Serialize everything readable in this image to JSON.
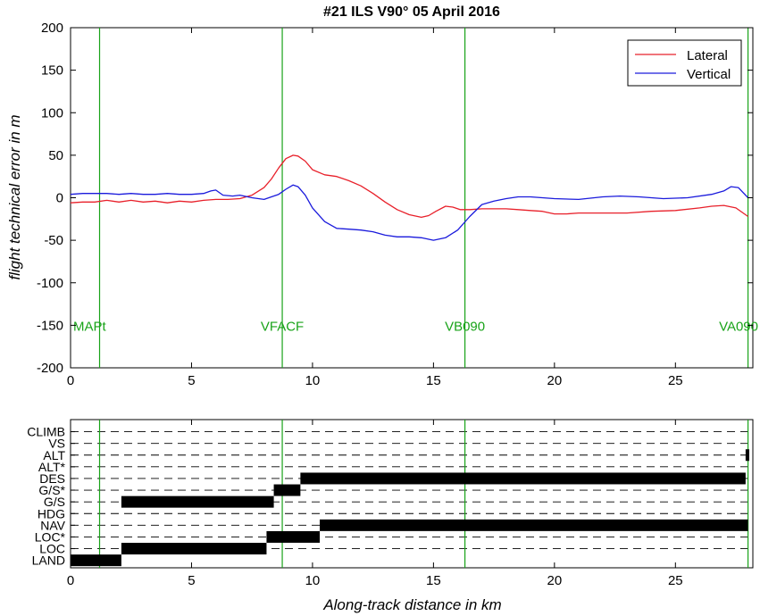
{
  "figure": {
    "title": "#21 ILS V90°  05 April 2016"
  },
  "colors": {
    "lateral": "#e8202a",
    "vertical": "#1a1adc",
    "waypoint": "#19a319",
    "axis": "#000000",
    "mode_fill": "#000000"
  },
  "chart_data": [
    {
      "type": "line",
      "title": "#21 ILS V90°  05 April 2016",
      "xlabel": "",
      "ylabel": "flight technical error in m",
      "xlim": [
        0,
        28.2
      ],
      "ylim": [
        -200,
        200
      ],
      "xticks": [
        0,
        5,
        10,
        15,
        20,
        25
      ],
      "yticks": [
        -200,
        -150,
        -100,
        -50,
        0,
        50,
        100,
        150,
        200
      ],
      "grid": false,
      "legend_position": "top-right",
      "series": [
        {
          "name": "Lateral",
          "color": "#e8202a",
          "x": [
            0,
            0.5,
            1,
            1.5,
            2,
            2.5,
            3,
            3.5,
            4,
            4.5,
            5,
            5.5,
            6,
            6.5,
            7,
            7.5,
            8,
            8.3,
            8.6,
            8.9,
            9.2,
            9.4,
            9.7,
            10.0,
            10.5,
            11,
            11.5,
            12,
            12.5,
            13,
            13.5,
            14,
            14.5,
            14.8,
            15.1,
            15.5,
            15.8,
            16.1,
            16.5,
            17,
            17.5,
            18,
            18.5,
            19,
            19.5,
            20,
            20.5,
            21,
            22,
            23,
            24,
            25,
            26,
            26.5,
            27,
            27.5,
            28.0
          ],
          "y": [
            -6,
            -5,
            -5,
            -3,
            -5,
            -3,
            -5,
            -4,
            -6,
            -4,
            -5,
            -3,
            -2,
            -2,
            -1,
            3,
            12,
            22,
            35,
            46,
            50,
            49,
            43,
            33,
            27,
            25,
            20,
            14,
            5,
            -5,
            -14,
            -20,
            -23,
            -21,
            -16,
            -10,
            -11,
            -14,
            -14,
            -13,
            -13,
            -13,
            -14,
            -15,
            -16,
            -19,
            -19,
            -18,
            -18,
            -18,
            -16,
            -15,
            -12,
            -10,
            -9,
            -12,
            -22
          ]
        },
        {
          "name": "Vertical",
          "color": "#1a1adc",
          "x": [
            0,
            0.5,
            1,
            1.5,
            2,
            2.5,
            3,
            3.5,
            4,
            4.5,
            5,
            5.5,
            5.8,
            6.0,
            6.3,
            6.7,
            7,
            7.5,
            8,
            8.3,
            8.6,
            8.9,
            9.2,
            9.4,
            9.7,
            10.0,
            10.5,
            11,
            11.5,
            12,
            12.5,
            13,
            13.5,
            14,
            14.5,
            15,
            15.5,
            16,
            16.5,
            17,
            17.5,
            18,
            18.5,
            19,
            19.5,
            20,
            21,
            22,
            22.7,
            23.5,
            24.5,
            25.5,
            26.5,
            27,
            27.3,
            27.6,
            28.0
          ],
          "y": [
            4,
            5,
            5,
            5,
            4,
            5,
            4,
            4,
            5,
            4,
            4,
            5,
            8,
            9,
            3,
            2,
            3,
            0,
            -2,
            1,
            4,
            10,
            15,
            13,
            3,
            -12,
            -28,
            -36,
            -37,
            -38,
            -40,
            -44,
            -46,
            -46,
            -47,
            -50,
            -47,
            -38,
            -22,
            -8,
            -4,
            -1,
            1,
            1,
            0,
            -1,
            -2,
            1,
            2,
            1,
            -1,
            0,
            4,
            8,
            13,
            12,
            0
          ]
        }
      ],
      "vlines": [
        {
          "x": 1.2,
          "label": "MAPt"
        },
        {
          "x": 8.75,
          "label": "VFACF"
        },
        {
          "x": 16.3,
          "label": "VB090"
        },
        {
          "x": 28.0,
          "label": "VA090"
        }
      ],
      "vline_label_y": -150
    },
    {
      "type": "bar",
      "subtype": "mode-timeline",
      "xlabel": "Along-track distance in km",
      "xlim": [
        0,
        28.2
      ],
      "xticks": [
        0,
        5,
        10,
        15,
        20,
        25
      ],
      "categories": [
        "CLIMB",
        "VS",
        "ALT",
        "ALT*",
        "DES",
        "G/S*",
        "G/S",
        "HDG",
        "NAV",
        "LOC*",
        "LOC",
        "LAND"
      ],
      "segments": [
        {
          "mode": "LAND",
          "start": 0,
          "end": 2.1
        },
        {
          "mode": "LOC",
          "start": 2.1,
          "end": 8.1
        },
        {
          "mode": "LOC*",
          "start": 8.1,
          "end": 10.3
        },
        {
          "mode": "NAV",
          "start": 10.3,
          "end": 28.0
        },
        {
          "mode": "G/S",
          "start": 2.1,
          "end": 8.4
        },
        {
          "mode": "G/S*",
          "start": 8.4,
          "end": 9.5
        },
        {
          "mode": "DES",
          "start": 9.5,
          "end": 27.9
        },
        {
          "mode": "ALT",
          "start": 27.9,
          "end": 28.05
        }
      ],
      "vlines": [
        1.2,
        8.75,
        16.3,
        28.0
      ]
    }
  ]
}
